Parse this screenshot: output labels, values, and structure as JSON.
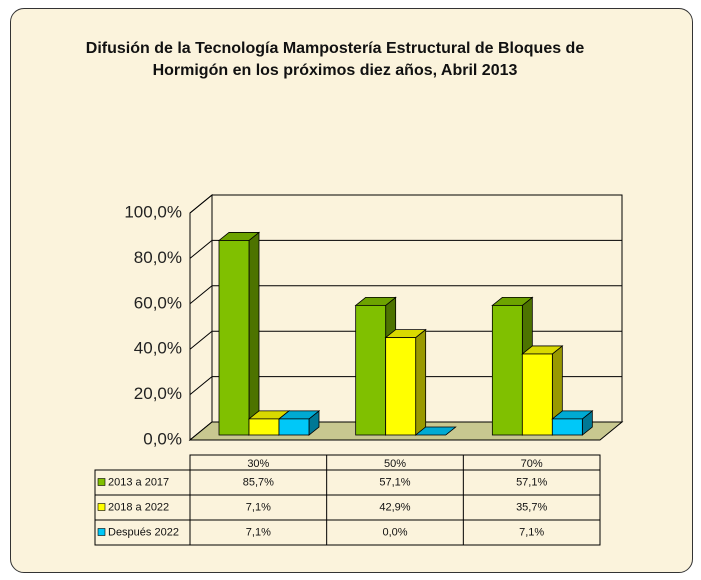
{
  "chart_data": {
    "type": "bar3d",
    "title": "Difusión de la Tecnología Mampostería Estructural de Bloques de Hormigón en los próximos diez años, Abril 2013",
    "categories": [
      "30%",
      "50%",
      "70%"
    ],
    "series": [
      {
        "name": "2013 a 2017",
        "color": "#80c000",
        "values": [
          85.7,
          57.1,
          57.1
        ],
        "value_labels": [
          "85,7%",
          "57,1%",
          "57,1%"
        ]
      },
      {
        "name": "2018 a 2022",
        "color": "#ffff00",
        "values": [
          7.1,
          42.9,
          35.7
        ],
        "value_labels": [
          "7,1%",
          "42,9%",
          "35,7%"
        ]
      },
      {
        "name": "Después 2022",
        "color": "#00c8f8",
        "values": [
          7.1,
          0.0,
          7.1
        ],
        "value_labels": [
          "7,1%",
          "0,0%",
          "7,1%"
        ]
      }
    ],
    "ylim": [
      0,
      100
    ],
    "yticks": [
      {
        "value": 0,
        "label": "0,0%"
      },
      {
        "value": 20,
        "label": "20,0%"
      },
      {
        "value": 40,
        "label": "40,0%"
      },
      {
        "value": 60,
        "label": "60,0%"
      },
      {
        "value": 80,
        "label": "80,0%"
      },
      {
        "value": 100,
        "label": "100,0%"
      }
    ],
    "grid": true
  }
}
